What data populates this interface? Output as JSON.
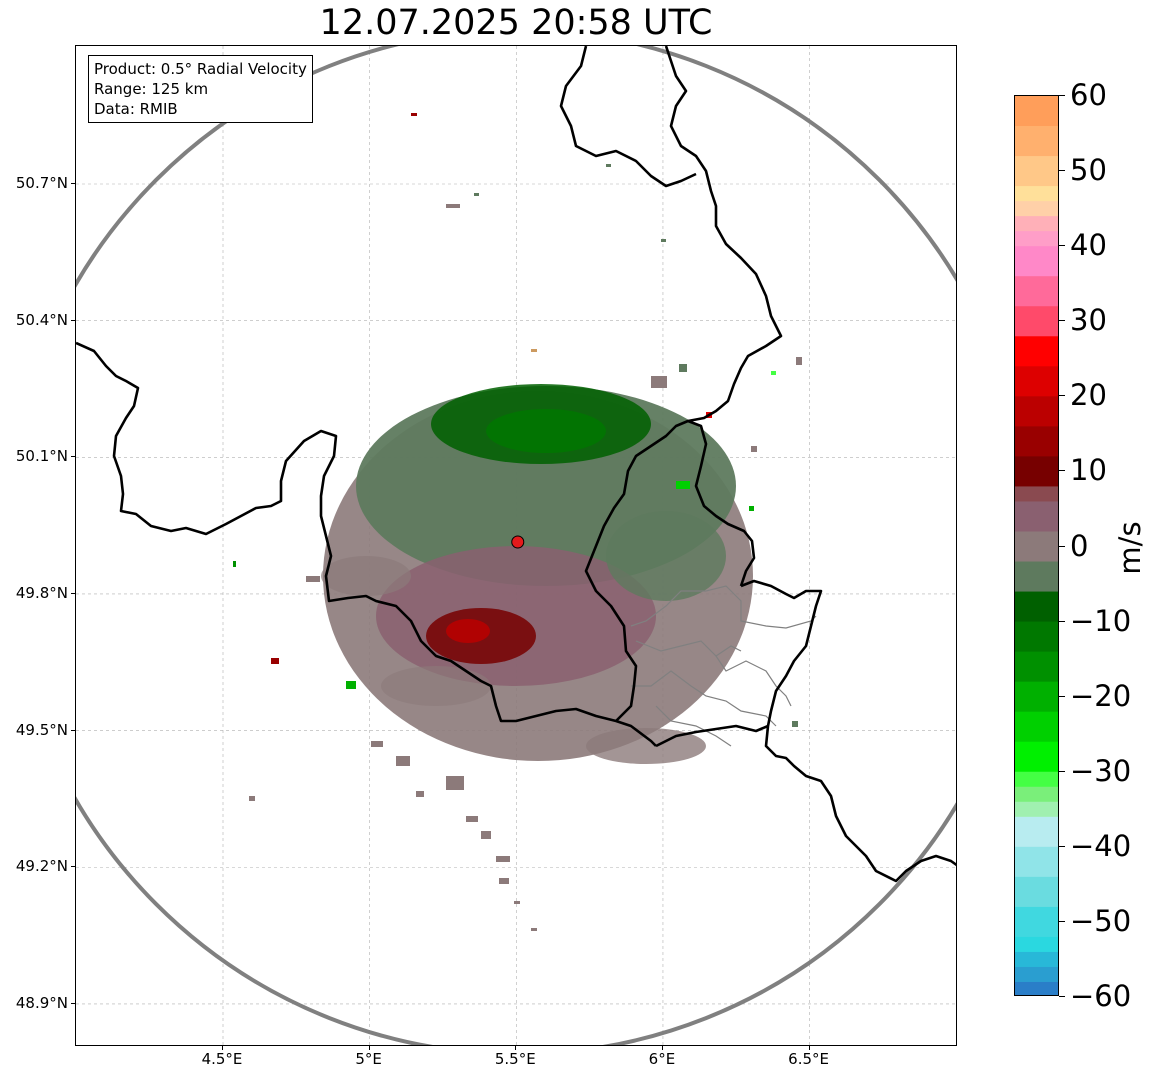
{
  "title": "12.07.2025 20:58 UTC",
  "info_box": {
    "product": "Product: 0.5° Radial Velocity",
    "range": "Range: 125 km",
    "data": "Data: RMIB"
  },
  "map": {
    "lon_range": [
      4.0,
      7.0
    ],
    "lat_range": [
      48.8,
      51.0
    ],
    "lon_ticks": [
      {
        "value": 4.5,
        "label": "4.5°E"
      },
      {
        "value": 5.0,
        "label": "5°E"
      },
      {
        "value": 5.5,
        "label": "5.5°E"
      },
      {
        "value": 6.0,
        "label": "6°E"
      },
      {
        "value": 6.5,
        "label": "6.5°E"
      }
    ],
    "lat_ticks": [
      {
        "value": 50.7,
        "label": "50.7°N"
      },
      {
        "value": 50.4,
        "label": "50.4°N"
      },
      {
        "value": 50.1,
        "label": "50.1°N"
      },
      {
        "value": 49.8,
        "label": "49.8°N"
      },
      {
        "value": 49.5,
        "label": "49.5°N"
      },
      {
        "value": 49.2,
        "label": "49.2°N"
      },
      {
        "value": 48.9,
        "label": "48.9°N"
      }
    ],
    "radar_site": {
      "lon": 5.505,
      "lat": 49.914
    },
    "range_ring_km": 125,
    "colors": {
      "border": "#000000",
      "admin_lines": "#808080",
      "range_ring": "#808080",
      "grid": "#b0b0b0",
      "radar_marker": "#e41a1c"
    }
  },
  "colorbar": {
    "label": "m/s",
    "min": -60,
    "max": 60,
    "tick_values": [
      60,
      50,
      40,
      30,
      20,
      10,
      0,
      -10,
      -20,
      -30,
      -40,
      -50,
      -60
    ],
    "tick_labels": [
      "60",
      "50",
      "40",
      "30",
      "20",
      "10",
      "0",
      "−10",
      "−20",
      "−30",
      "−40",
      "−50",
      "−60"
    ],
    "color_steps": [
      {
        "from": 56,
        "to": 60,
        "color": "#ff9e5a"
      },
      {
        "from": 52,
        "to": 56,
        "color": "#ffb06e"
      },
      {
        "from": 48,
        "to": 52,
        "color": "#ffc888"
      },
      {
        "from": 46,
        "to": 48,
        "color": "#ffe09a"
      },
      {
        "from": 44,
        "to": 46,
        "color": "#ffd0a8"
      },
      {
        "from": 42,
        "to": 44,
        "color": "#ffb0b8"
      },
      {
        "from": 40,
        "to": 42,
        "color": "#ff9ec8"
      },
      {
        "from": 36,
        "to": 40,
        "color": "#ff88c8"
      },
      {
        "from": 32,
        "to": 36,
        "color": "#ff6a9a"
      },
      {
        "from": 28,
        "to": 32,
        "color": "#ff4a6a"
      },
      {
        "from": 24,
        "to": 28,
        "color": "#ff0000"
      },
      {
        "from": 20,
        "to": 24,
        "color": "#dd0000"
      },
      {
        "from": 16,
        "to": 20,
        "color": "#bb0000"
      },
      {
        "from": 12,
        "to": 16,
        "color": "#990000"
      },
      {
        "from": 8,
        "to": 12,
        "color": "#770000"
      },
      {
        "from": 6,
        "to": 8,
        "color": "#8a4a50"
      },
      {
        "from": 2,
        "to": 6,
        "color": "#8a6070"
      },
      {
        "from": -2,
        "to": 2,
        "color": "#8c7a7a"
      },
      {
        "from": -6,
        "to": -2,
        "color": "#5e7a5e"
      },
      {
        "from": -10,
        "to": -6,
        "color": "#006000"
      },
      {
        "from": -14,
        "to": -10,
        "color": "#007800"
      },
      {
        "from": -18,
        "to": -14,
        "color": "#009000"
      },
      {
        "from": -22,
        "to": -18,
        "color": "#00b000"
      },
      {
        "from": -26,
        "to": -22,
        "color": "#00d000"
      },
      {
        "from": -30,
        "to": -26,
        "color": "#00f000"
      },
      {
        "from": -32,
        "to": -30,
        "color": "#44ff44"
      },
      {
        "from": -34,
        "to": -32,
        "color": "#7aef7a"
      },
      {
        "from": -36,
        "to": -34,
        "color": "#a0f0b0"
      },
      {
        "from": -40,
        "to": -36,
        "color": "#b8ecf0"
      },
      {
        "from": -44,
        "to": -40,
        "color": "#90e4e8"
      },
      {
        "from": -48,
        "to": -44,
        "color": "#6adce0"
      },
      {
        "from": -52,
        "to": -48,
        "color": "#40d8e0"
      },
      {
        "from": -54,
        "to": -52,
        "color": "#2ad8e0"
      },
      {
        "from": -56,
        "to": -54,
        "color": "#28b8d8"
      },
      {
        "from": -58,
        "to": -56,
        "color": "#2a9ed0"
      },
      {
        "from": -60,
        "to": -58,
        "color": "#2a7ec8"
      }
    ]
  }
}
